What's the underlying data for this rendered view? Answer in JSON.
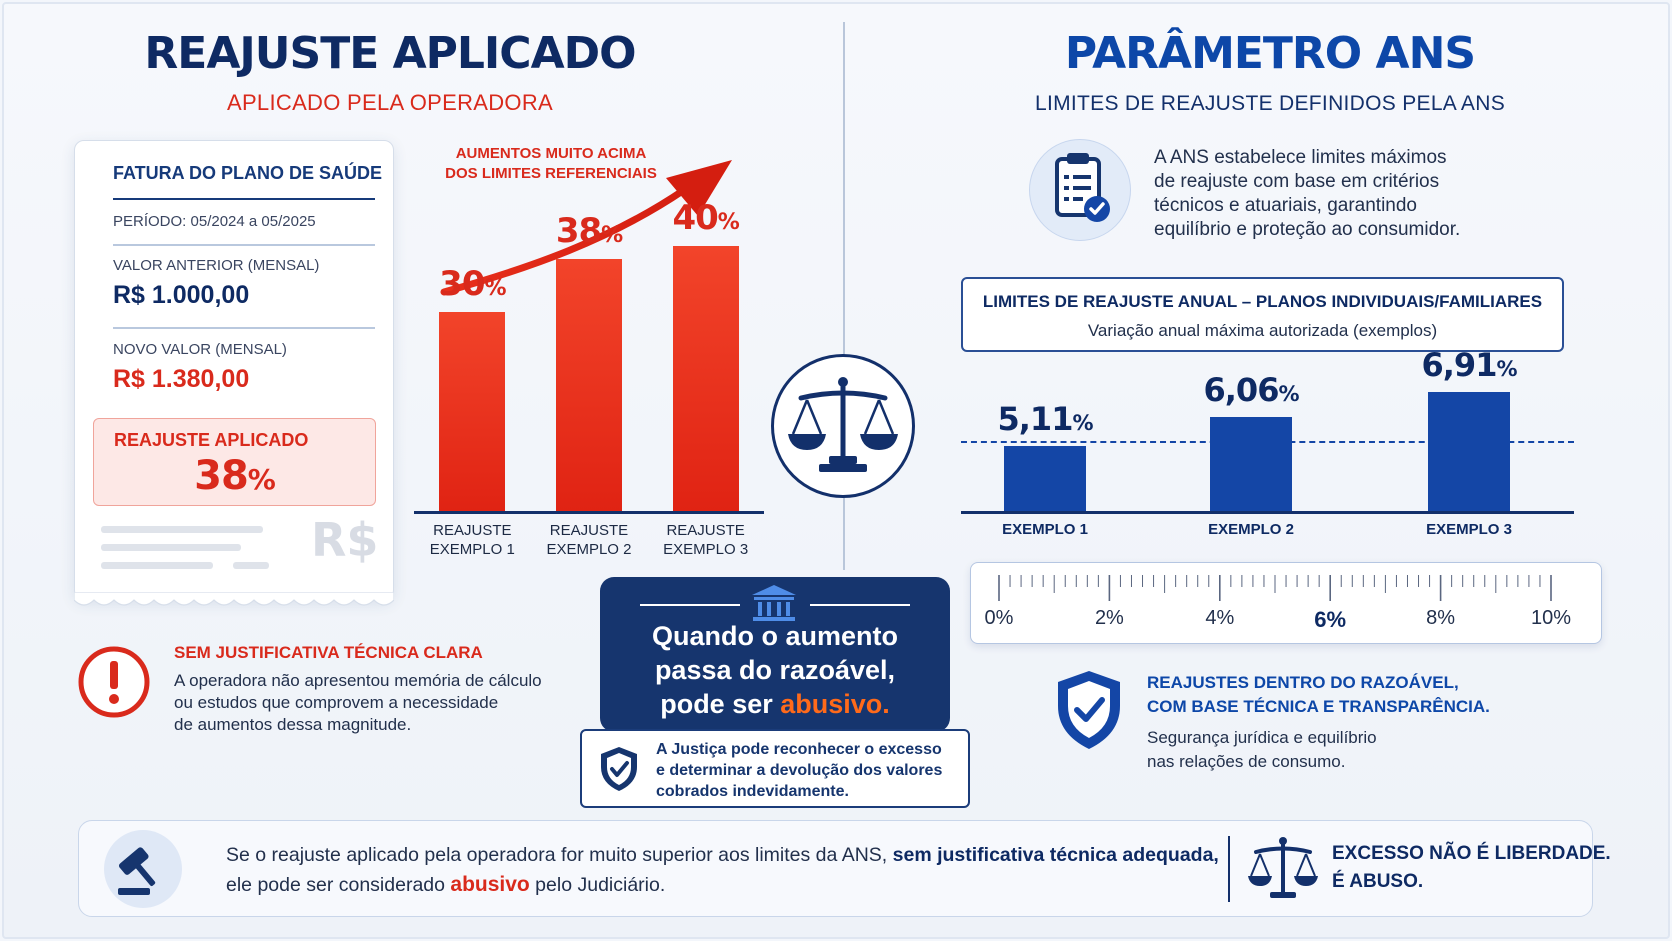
{
  "left": {
    "title": "REAJUSTE APLICADO",
    "subtitle": "APLICADO PELA OPERADORA",
    "invoice": {
      "title": "FATURA DO PLANO DE SAÚDE",
      "period": "PERÍODO: 05/2024 a 05/2025",
      "prev_label": "VALOR ANTERIOR (MENSAL)",
      "prev_value": "R$ 1.000,00",
      "new_label": "NOVO VALOR (MENSAL)",
      "new_value": "R$ 1.380,00",
      "applied_label": "REAJUSTE APLICADO",
      "applied_value": "38",
      "applied_unit": "%",
      "currency_mark": "R$"
    },
    "warning": {
      "title": "SEM JUSTIFICATIVA TÉCNICA CLARA",
      "line1": "A operadora não apresentou memória de cálculo",
      "line2": "ou estudos que comprovem a necessidade",
      "line3": "de aumentos dessa magnitude."
    }
  },
  "chart_left": {
    "arrow_line1": "AUMENTOS MUITO ACIMA",
    "arrow_line2": "DOS LIMITES REFERENCIAIS"
  },
  "center": {
    "line1": "Quando o aumento",
    "line2": "passa do razoável,",
    "line3_prefix": "pode ser ",
    "line3_highlight": "abusivo.",
    "note_line1": "A Justiça pode reconhecer o excesso",
    "note_line2": "e determinar a devolução dos valores",
    "note_line3": "cobrados indevidamente."
  },
  "right": {
    "title": "PARÂMETRO ANS",
    "subtitle": "LIMITES DE REAJUSTE DEFINIDOS PELA ANS",
    "intro_line1": "A ANS estabelece limites máximos",
    "intro_line2": "de reajuste com base em critérios",
    "intro_line3": "técnicos e atuariais, garantindo",
    "intro_line4": "equilíbrio e proteção ao consumidor.",
    "limits_title": "LIMITES DE REAJUSTE ANUAL – PLANOS INDIVIDUAIS/FAMILIARES",
    "limits_sub": "Variação anual máxima autorizada (exemplos)",
    "ruler_labels": [
      "0%",
      "2%",
      "4%",
      "6%",
      "8%",
      "10%"
    ],
    "shield_title1": "REAJUSTES DENTRO DO RAZOÁVEL,",
    "shield_title2": "COM BASE TÉCNICA E TRANSPARÊNCIA.",
    "shield_text1": "Segurança jurídica e equilíbrio",
    "shield_text2": "nas relações de consumo."
  },
  "bottom": {
    "l1_a": "Se o reajuste aplicado pela operadora for muito superior aos limites da ANS, ",
    "l1_b": "sem justificativa técnica adequada,",
    "l2_a": "ele pode ser considerado ",
    "l2_b": "abusivo",
    "l2_c": " pelo Judiciário.",
    "right1": "EXCESSO NÃO É LIBERDADE.",
    "right2": "É ABUSO."
  },
  "chart_data": [
    {
      "type": "bar",
      "title": "",
      "categories": [
        "REAJUSTE EXEMPLO 1",
        "REAJUSTE EXEMPLO 2",
        "REAJUSTE EXEMPLO 3"
      ],
      "values": [
        30,
        38,
        40
      ],
      "value_labels": [
        "30",
        "38",
        "40"
      ],
      "unit": "%",
      "color": "#e8301c"
    },
    {
      "type": "bar",
      "title": "",
      "categories": [
        "EXEMPLO 1",
        "EXEMPLO 2",
        "EXEMPLO 3"
      ],
      "values": [
        5.11,
        6.06,
        6.91
      ],
      "value_labels": [
        "5,11",
        "6,06",
        "6,91"
      ],
      "unit": "%",
      "color": "#1446a6"
    }
  ]
}
